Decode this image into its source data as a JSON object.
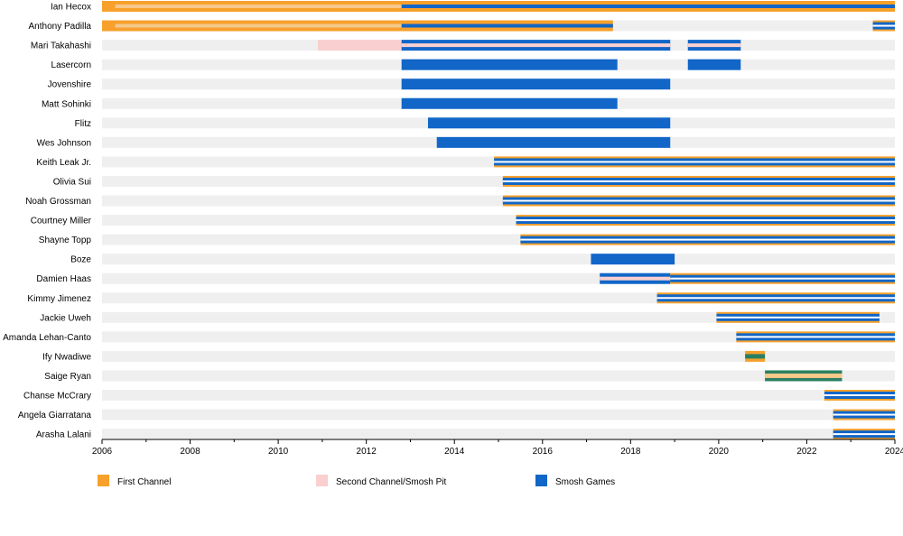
{
  "chart_data": {
    "type": "timeline",
    "xlim": [
      2006,
      2024
    ],
    "x_ticks": [
      "2006",
      "2008",
      "2010",
      "2012",
      "2014",
      "2016",
      "2018",
      "2020",
      "2022",
      "2024"
    ],
    "colors": {
      "first": "#f7a12c",
      "first_light": "#f6c88a",
      "second": "#f9cfcf",
      "games": "#1166c8",
      "other": "#2a7f62",
      "track": "#efefef"
    },
    "legend": [
      {
        "label": "First Channel",
        "key": "first"
      },
      {
        "label": "Second Channel/Smosh Pit",
        "key": "second"
      },
      {
        "label": "Smosh Games",
        "key": "games"
      }
    ],
    "members": [
      {
        "name": "Ian Hecox",
        "bars": [
          {
            "start": 2006.0,
            "end": 2024.0,
            "style": "first_solid"
          },
          {
            "start": 2006.3,
            "end": 2012.8,
            "style": "first_light_stripe"
          },
          {
            "start": 2012.8,
            "end": 2024.0,
            "style": "games_stripe"
          }
        ]
      },
      {
        "name": "Anthony Padilla",
        "bars": [
          {
            "start": 2006.0,
            "end": 2017.6,
            "style": "first_solid"
          },
          {
            "start": 2006.3,
            "end": 2012.8,
            "style": "first_light_stripe"
          },
          {
            "start": 2012.8,
            "end": 2017.6,
            "style": "games_stripe"
          },
          {
            "start": 2023.5,
            "end": 2024.0,
            "style": "first_games"
          }
        ]
      },
      {
        "name": "Mari Takahashi",
        "bars": [
          {
            "start": 2010.9,
            "end": 2012.8,
            "style": "second_solid"
          },
          {
            "start": 2012.8,
            "end": 2018.9,
            "style": "games_second"
          },
          {
            "start": 2019.3,
            "end": 2020.5,
            "style": "games_second"
          }
        ]
      },
      {
        "name": "Lasercorn",
        "bars": [
          {
            "start": 2012.8,
            "end": 2017.7,
            "style": "games_solid"
          },
          {
            "start": 2019.3,
            "end": 2020.5,
            "style": "games_solid"
          }
        ]
      },
      {
        "name": "Jovenshire",
        "bars": [
          {
            "start": 2012.8,
            "end": 2018.9,
            "style": "games_solid"
          }
        ]
      },
      {
        "name": "Matt Sohinki",
        "bars": [
          {
            "start": 2012.8,
            "end": 2017.7,
            "style": "games_solid"
          }
        ]
      },
      {
        "name": "Flitz",
        "bars": [
          {
            "start": 2013.4,
            "end": 2018.9,
            "style": "games_solid"
          }
        ]
      },
      {
        "name": "Wes Johnson",
        "bars": [
          {
            "start": 2013.6,
            "end": 2018.9,
            "style": "games_solid"
          }
        ]
      },
      {
        "name": "Keith Leak Jr.",
        "bars": [
          {
            "start": 2014.9,
            "end": 2024.0,
            "style": "first_games"
          }
        ]
      },
      {
        "name": "Olivia Sui",
        "bars": [
          {
            "start": 2015.1,
            "end": 2024.0,
            "style": "first_games"
          }
        ]
      },
      {
        "name": "Noah Grossman",
        "bars": [
          {
            "start": 2015.1,
            "end": 2024.0,
            "style": "first_games"
          }
        ]
      },
      {
        "name": "Courtney Miller",
        "bars": [
          {
            "start": 2015.4,
            "end": 2024.0,
            "style": "first_games"
          }
        ]
      },
      {
        "name": "Shayne Topp",
        "bars": [
          {
            "start": 2015.5,
            "end": 2024.0,
            "style": "first_games"
          }
        ]
      },
      {
        "name": "Boze",
        "bars": [
          {
            "start": 2017.1,
            "end": 2019.0,
            "style": "games_solid"
          }
        ]
      },
      {
        "name": "Damien Haas",
        "bars": [
          {
            "start": 2017.3,
            "end": 2018.9,
            "style": "games_second"
          },
          {
            "start": 2018.9,
            "end": 2024.0,
            "style": "first_games"
          }
        ]
      },
      {
        "name": "Kimmy Jimenez",
        "bars": [
          {
            "start": 2018.6,
            "end": 2024.0,
            "style": "first_games"
          }
        ]
      },
      {
        "name": "Jackie Uweh",
        "bars": [
          {
            "start": 2019.95,
            "end": 2023.65,
            "style": "first_games"
          }
        ]
      },
      {
        "name": "Amanda Lehan-Canto",
        "bars": [
          {
            "start": 2020.4,
            "end": 2024.0,
            "style": "first_games"
          }
        ]
      },
      {
        "name": "Ify Nwadiwe",
        "bars": [
          {
            "start": 2020.6,
            "end": 2021.05,
            "style": "first_other"
          }
        ]
      },
      {
        "name": "Saige Ryan",
        "bars": [
          {
            "start": 2021.05,
            "end": 2022.8,
            "style": "other_first"
          }
        ]
      },
      {
        "name": "Chanse McCrary",
        "bars": [
          {
            "start": 2022.4,
            "end": 2024.0,
            "style": "first_games"
          }
        ]
      },
      {
        "name": "Angela Giarratana",
        "bars": [
          {
            "start": 2022.6,
            "end": 2024.0,
            "style": "first_games"
          }
        ]
      },
      {
        "name": "Arasha Lalani",
        "bars": [
          {
            "start": 2022.6,
            "end": 2024.0,
            "style": "first_games"
          }
        ]
      }
    ]
  }
}
